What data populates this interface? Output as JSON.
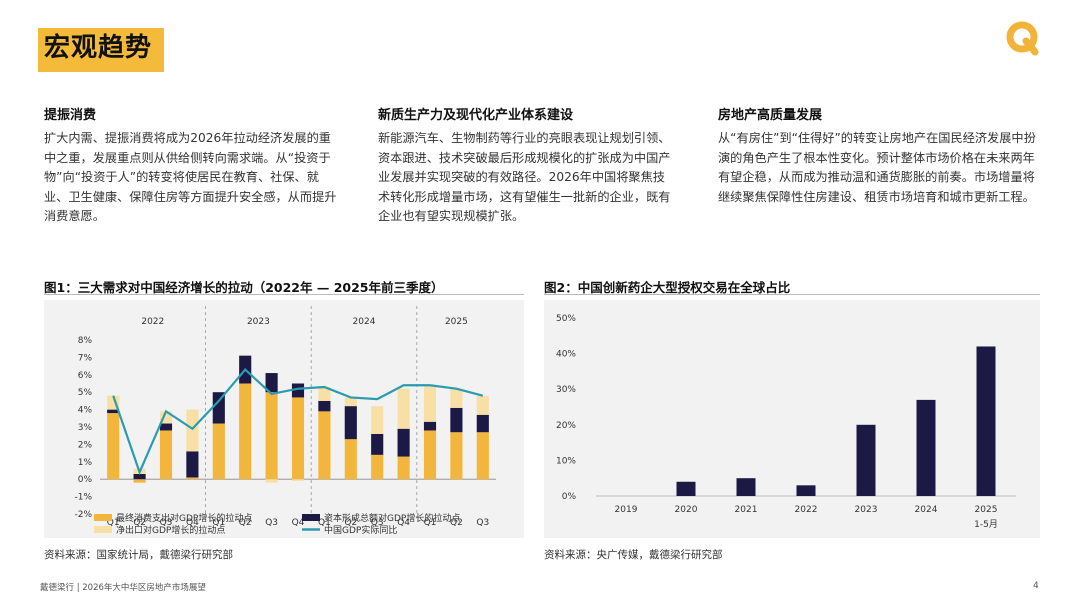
{
  "header": {
    "title": "宏观趋势",
    "logo": "orange-q-logo-icon"
  },
  "columns": [
    {
      "heading": "提振消费",
      "body": "扩大内需、提振消费将成为2026年拉动经济发展的重中之重，发展重点则从供给侧转向需求端。从“投资于物”向“投资于人”的转变将使居民在教育、社保、就业、卫生健康、保障住房等方面提升安全感，从而提升消费意愿。"
    },
    {
      "heading": "新质生产力及现代化产业体系建设",
      "body": "新能源汽车、生物制药等行业的亮眼表现让规划引领、资本跟进、技术突破最后形成规模化的扩张成为中国产业发展并实现突破的有效路径。2026年中国将聚焦技术转化形成增量市场，这有望催生一批新的企业，既有企业也有望实现规模扩张。"
    },
    {
      "heading": "房地产高质量发展",
      "body": "从“有房住”到“住得好”的转变让房地产在国民经济发展中扮演的角色产生了根本性变化。预计整体市场价格在未来两年有望企稳，从而成为推动温和通货膨胀的前奏。市场增量将继续聚焦保障性住房建设、租赁市场培育和城市更新工程。"
    }
  ],
  "fig1": {
    "title": "图1：三大需求对中国经济增长的拉动（2022年 — 2025年前三季度）",
    "source": "资料来源：国家统计局，戴德梁行研究部"
  },
  "fig2": {
    "title": "图2：中国创新药企大型授权交易在全球占比",
    "source": "资料来源：央广传媒，戴德梁行研究部"
  },
  "footer": {
    "text": "戴德梁行 | 2026年大中华区房地产市场展望",
    "page": "4"
  },
  "colors": {
    "accent": "#f4bb3a",
    "consumption": "#f2b63d",
    "capital": "#1c1a45",
    "netexport": "#f8dfa6",
    "gdp": "#2a9bb0",
    "bar2": "#1c1a45",
    "chart_bg": "#f2f2f2"
  },
  "chart_data": [
    {
      "type": "bar",
      "stacked": true,
      "years": [
        "2022",
        "2023",
        "2024",
        "2025"
      ],
      "categories": [
        "Q1",
        "Q2",
        "Q3",
        "Q4",
        "Q1",
        "Q2",
        "Q3",
        "Q4",
        "Q1",
        "Q2",
        "Q3",
        "Q4",
        "Q1",
        "Q2",
        "Q3"
      ],
      "ylim": [
        -2,
        8
      ],
      "yticks": [
        "-2%",
        "-1%",
        "0%",
        "1%",
        "2%",
        "3%",
        "4%",
        "5%",
        "6%",
        "7%",
        "8%"
      ],
      "series": [
        {
          "name": "最终消费支出对GDP增长的拉动点",
          "values": [
            3.8,
            -0.2,
            2.8,
            0.1,
            3.2,
            5.5,
            5.0,
            4.7,
            3.9,
            2.3,
            1.4,
            1.3,
            2.8,
            2.7,
            2.7
          ]
        },
        {
          "name": "资本形成总额对GDP增长的拉动点",
          "values": [
            0.2,
            0.3,
            0.4,
            1.5,
            1.8,
            1.6,
            1.1,
            0.8,
            0.6,
            1.9,
            1.2,
            1.6,
            0.5,
            1.4,
            1.0
          ]
        },
        {
          "name": "净出口对GDP增长的拉动点",
          "values": [
            0.8,
            0.3,
            0.7,
            2.4,
            0.0,
            0.0,
            -0.2,
            -0.1,
            0.8,
            0.5,
            1.6,
            2.3,
            2.1,
            1.1,
            1.1
          ]
        },
        {
          "name": "中国GDP实际同比",
          "type": "line",
          "values": [
            4.8,
            0.4,
            3.9,
            2.9,
            4.5,
            6.3,
            4.9,
            5.2,
            5.3,
            4.7,
            4.6,
            5.4,
            5.4,
            5.2,
            4.8
          ]
        }
      ]
    },
    {
      "type": "bar",
      "categories": [
        "2019",
        "2020",
        "2021",
        "2022",
        "2023",
        "2024",
        "2025"
      ],
      "category_note": "1-5月",
      "values": [
        0,
        4,
        5,
        3,
        20,
        27,
        42
      ],
      "ylim": [
        0,
        50
      ],
      "yticks": [
        "0%",
        "10%",
        "20%",
        "30%",
        "40%",
        "50%"
      ]
    }
  ]
}
